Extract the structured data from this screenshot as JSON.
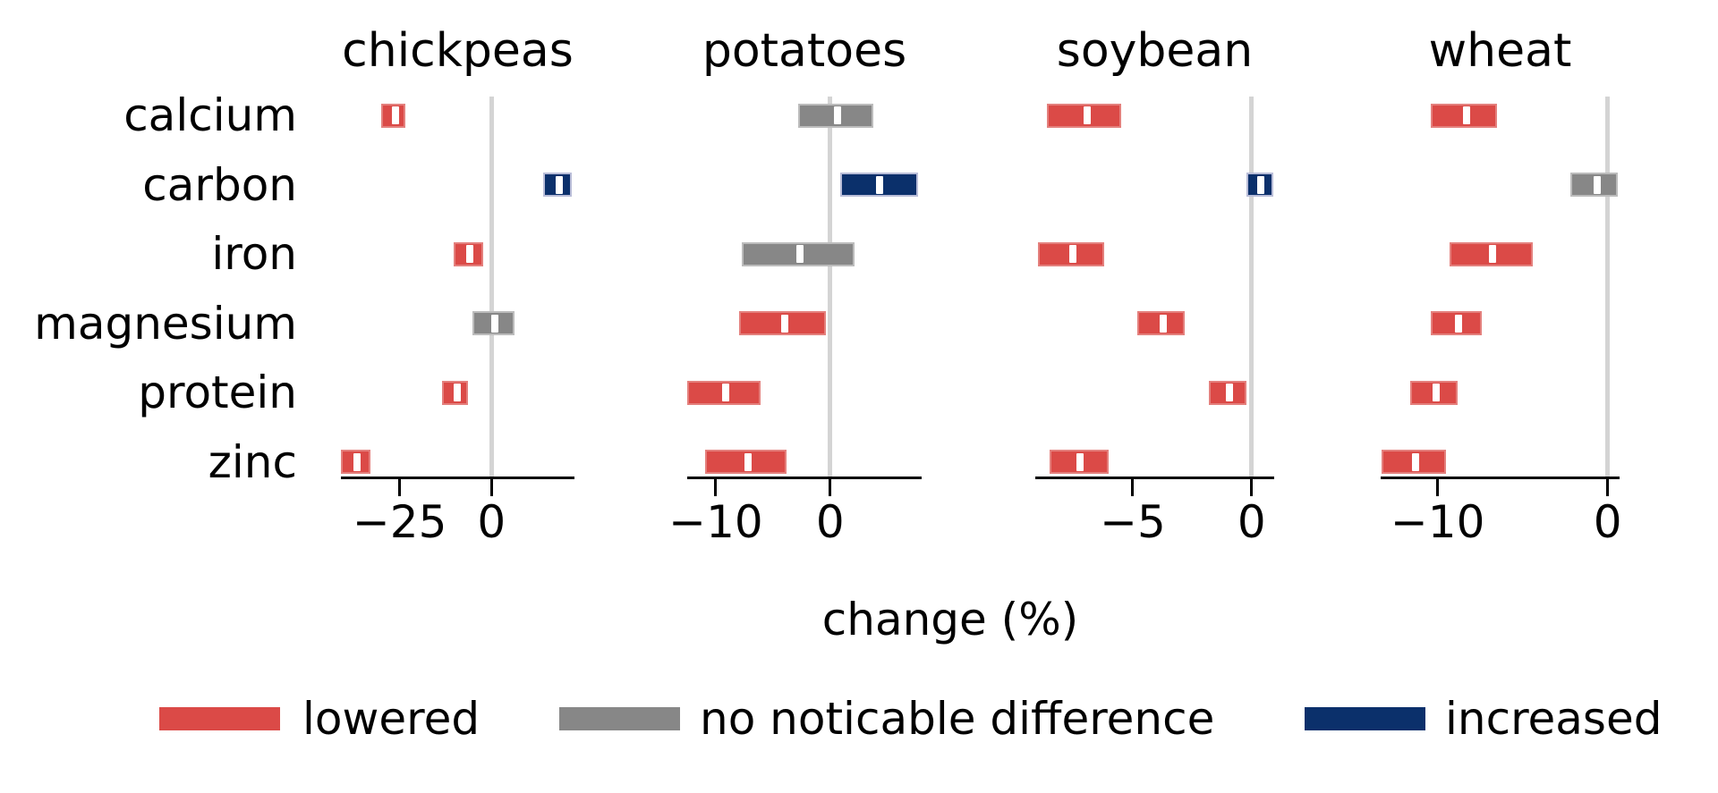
{
  "chart_data": {
    "type": "box",
    "orientation": "horizontal",
    "title": "",
    "xlabel": "change (%)",
    "grid": false,
    "categories": [
      "calcium",
      "carbon",
      "iron",
      "magnesium",
      "protein",
      "zinc"
    ],
    "legend": {
      "position": "bottom",
      "entries": [
        {
          "key": "lowered",
          "label": "lowered",
          "color": "#db4a47",
          "border": "#e4807d"
        },
        {
          "key": "no_difference",
          "label": "no noticable difference",
          "color": "#878787",
          "border": "#bcbcbc"
        },
        {
          "key": "increased",
          "label": "increased",
          "color": "#0b306b",
          "border": "#b9bdd8"
        }
      ]
    },
    "style": {
      "zero_line_color": "#d4d4d4",
      "axis_color": "#000000",
      "median_color": "#ffffff",
      "background": "#ffffff"
    },
    "panels": [
      {
        "title": "chickpeas",
        "xlim": [
          -41.0,
          22.6
        ],
        "ticks": [
          {
            "value": -25,
            "label": "−25"
          },
          {
            "value": 0,
            "label": "0"
          }
        ],
        "boxes": [
          {
            "nutrient": "calcium",
            "lo": -30.0,
            "med": -26.7,
            "hi": -23.5,
            "category": "lowered"
          },
          {
            "nutrient": "carbon",
            "lo": 14.0,
            "med": 17.9,
            "hi": 21.8,
            "category": "increased"
          },
          {
            "nutrient": "iron",
            "lo": -10.3,
            "med": -6.3,
            "hi": -2.2,
            "category": "lowered"
          },
          {
            "nutrient": "magnesium",
            "lo": -5.3,
            "med": 0.4,
            "hi": 6.2,
            "category": "no_difference"
          },
          {
            "nutrient": "protein",
            "lo": -13.4,
            "med": -9.9,
            "hi": -6.3,
            "category": "lowered"
          },
          {
            "nutrient": "zinc",
            "lo": -40.9,
            "med": -37.1,
            "hi": -33.0,
            "category": "lowered"
          }
        ]
      },
      {
        "title": "potatoes",
        "xlim": [
          -12.5,
          8.0
        ],
        "ticks": [
          {
            "value": -10,
            "label": "−10"
          },
          {
            "value": 0,
            "label": "0"
          }
        ],
        "boxes": [
          {
            "nutrient": "calcium",
            "lo": -2.8,
            "med": 0.5,
            "hi": 3.8,
            "category": "no_difference"
          },
          {
            "nutrient": "carbon",
            "lo": 0.9,
            "med": 4.2,
            "hi": 7.7,
            "category": "increased"
          },
          {
            "nutrient": "iron",
            "lo": -7.7,
            "med": -2.8,
            "hi": 2.1,
            "category": "no_difference"
          },
          {
            "nutrient": "magnesium",
            "lo": -8.0,
            "med": -4.1,
            "hi": -0.4,
            "category": "lowered"
          },
          {
            "nutrient": "protein",
            "lo": -12.5,
            "med": -9.3,
            "hi": -6.1,
            "category": "lowered"
          },
          {
            "nutrient": "zinc",
            "lo": -10.9,
            "med": -7.3,
            "hi": -3.8,
            "category": "lowered"
          }
        ]
      },
      {
        "title": "soybean",
        "xlim": [
          -9.1,
          0.95
        ],
        "ticks": [
          {
            "value": -5,
            "label": "−5"
          },
          {
            "value": 0,
            "label": "0"
          }
        ],
        "boxes": [
          {
            "nutrient": "calcium",
            "lo": -8.6,
            "med": -7.0,
            "hi": -5.5,
            "category": "lowered"
          },
          {
            "nutrient": "carbon",
            "lo": -0.2,
            "med": 0.3,
            "hi": 0.9,
            "category": "increased"
          },
          {
            "nutrient": "iron",
            "lo": -9.0,
            "med": -7.6,
            "hi": -6.2,
            "category": "lowered"
          },
          {
            "nutrient": "magnesium",
            "lo": -4.8,
            "med": -3.8,
            "hi": -2.8,
            "category": "lowered"
          },
          {
            "nutrient": "protein",
            "lo": -1.8,
            "med": -1.0,
            "hi": -0.2,
            "category": "lowered"
          },
          {
            "nutrient": "zinc",
            "lo": -8.5,
            "med": -7.3,
            "hi": -6.0,
            "category": "lowered"
          }
        ]
      },
      {
        "title": "wheat",
        "xlim": [
          -13.35,
          0.7
        ],
        "ticks": [
          {
            "value": -10,
            "label": "−10"
          },
          {
            "value": 0,
            "label": "0"
          }
        ],
        "boxes": [
          {
            "nutrient": "calcium",
            "lo": -10.4,
            "med": -8.4,
            "hi": -6.5,
            "category": "lowered"
          },
          {
            "nutrient": "carbon",
            "lo": -2.2,
            "med": -0.7,
            "hi": 0.6,
            "category": "no_difference"
          },
          {
            "nutrient": "iron",
            "lo": -9.3,
            "med": -6.9,
            "hi": -4.4,
            "category": "lowered"
          },
          {
            "nutrient": "magnesium",
            "lo": -10.4,
            "med": -8.9,
            "hi": -7.4,
            "category": "lowered"
          },
          {
            "nutrient": "protein",
            "lo": -11.6,
            "med": -10.2,
            "hi": -8.8,
            "category": "lowered"
          },
          {
            "nutrient": "zinc",
            "lo": -13.3,
            "med": -11.4,
            "hi": -9.5,
            "category": "lowered"
          }
        ]
      }
    ]
  }
}
